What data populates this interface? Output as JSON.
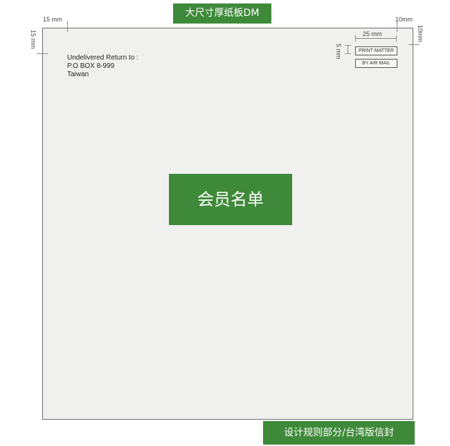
{
  "title_banner": "大尺寸厚纸板DM",
  "footer_banner": "设计规则部分/台湾版信封",
  "dimensions": {
    "top_left_horizontal": "15 mm",
    "top_left_vertical": "15 mm",
    "top_right_horizontal": "10mm",
    "top_right_vertical": "10mm",
    "stamp_width": "25 mm",
    "stamp_gap": "5 mm"
  },
  "return_address": {
    "line1": "Undelivered Return to :",
    "line2": "P.O BOX 8-999",
    "line3": "Taiwan"
  },
  "stamps": {
    "print_matter": "PRINT MATTER",
    "air_mail": "BY AIR MAIL"
  },
  "center_label": "会员名单"
}
